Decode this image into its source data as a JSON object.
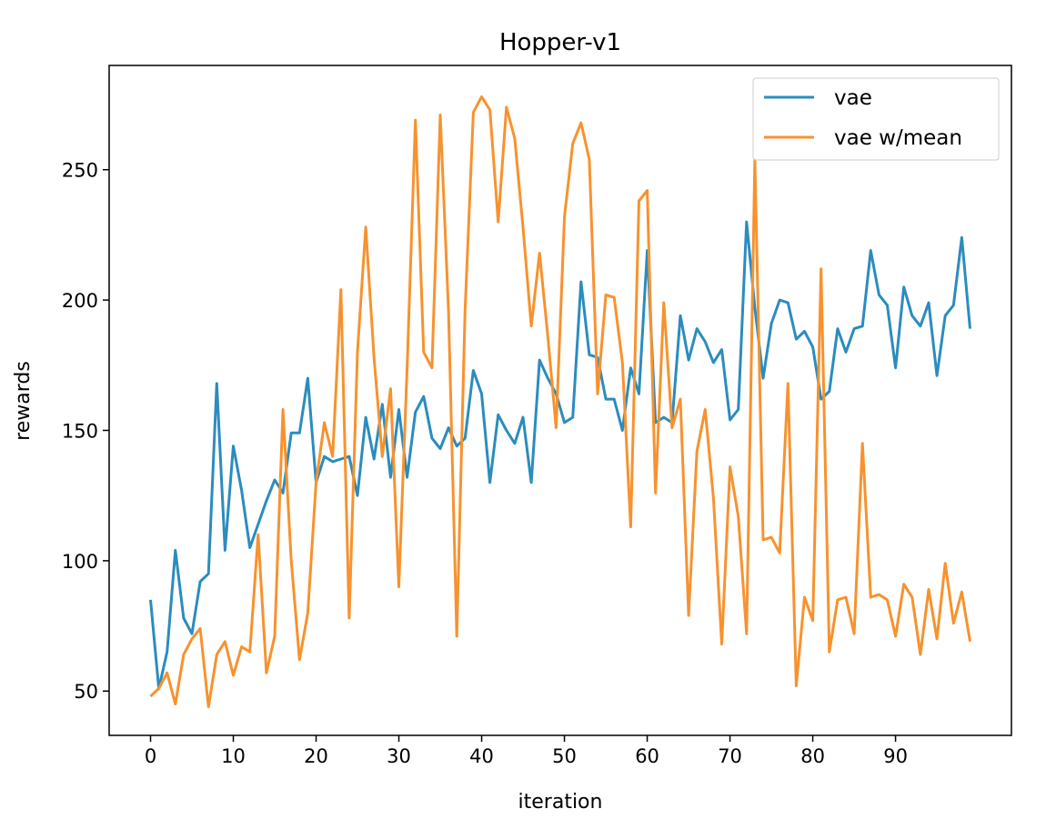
{
  "chart_data": {
    "type": "line",
    "title": "Hopper-v1",
    "xlabel": "iteration",
    "ylabel": "rewards",
    "xlim": [
      -5,
      104
    ],
    "ylim": [
      33,
      290
    ],
    "xticks": [
      0,
      10,
      20,
      30,
      40,
      50,
      60,
      70,
      80,
      90
    ],
    "yticks": [
      50,
      100,
      150,
      200,
      250
    ],
    "grid": false,
    "legend_position": "top-right",
    "series": [
      {
        "name": "vae",
        "color": "#2b8cbe",
        "values": [
          85,
          51,
          65,
          104,
          78,
          72,
          92,
          95,
          168,
          104,
          144,
          127,
          105,
          114,
          123,
          131,
          126,
          149,
          149,
          170,
          130,
          140,
          138,
          139,
          140,
          125,
          155,
          139,
          160,
          132,
          158,
          132,
          157,
          163,
          147,
          143,
          151,
          144,
          147,
          173,
          164,
          130,
          156,
          150,
          145,
          155,
          130,
          177,
          170,
          164,
          153,
          155,
          207,
          179,
          178,
          162,
          162,
          150,
          174,
          164,
          219,
          153,
          155,
          153,
          194,
          177,
          189,
          184,
          176,
          181,
          154,
          158,
          230,
          197,
          170,
          191,
          200,
          199,
          185,
          188,
          182,
          162,
          165,
          189,
          180,
          189,
          190,
          219,
          202,
          198,
          174,
          205,
          194,
          190,
          199,
          171,
          194,
          198,
          224,
          189
        ]
      },
      {
        "name": "vae w/mean",
        "color": "#f7922e",
        "values": [
          48,
          51,
          57,
          45,
          64,
          70,
          74,
          44,
          64,
          69,
          56,
          67,
          65,
          110,
          57,
          71,
          158,
          100,
          62,
          80,
          130,
          153,
          140,
          204,
          78,
          180,
          228,
          178,
          140,
          166,
          90,
          174,
          269,
          180,
          174,
          271,
          196,
          71,
          196,
          272,
          278,
          273,
          230,
          274,
          262,
          228,
          190,
          218,
          186,
          151,
          232,
          260,
          268,
          254,
          164,
          202,
          201,
          176,
          113,
          238,
          242,
          126,
          199,
          151,
          162,
          79,
          142,
          158,
          124,
          68,
          136,
          117,
          72,
          254,
          108,
          109,
          103,
          168,
          52,
          86,
          77,
          212,
          65,
          85,
          86,
          72,
          145,
          86,
          87,
          85,
          71,
          91,
          86,
          64,
          89,
          70,
          99,
          76,
          88,
          69
        ]
      }
    ]
  }
}
